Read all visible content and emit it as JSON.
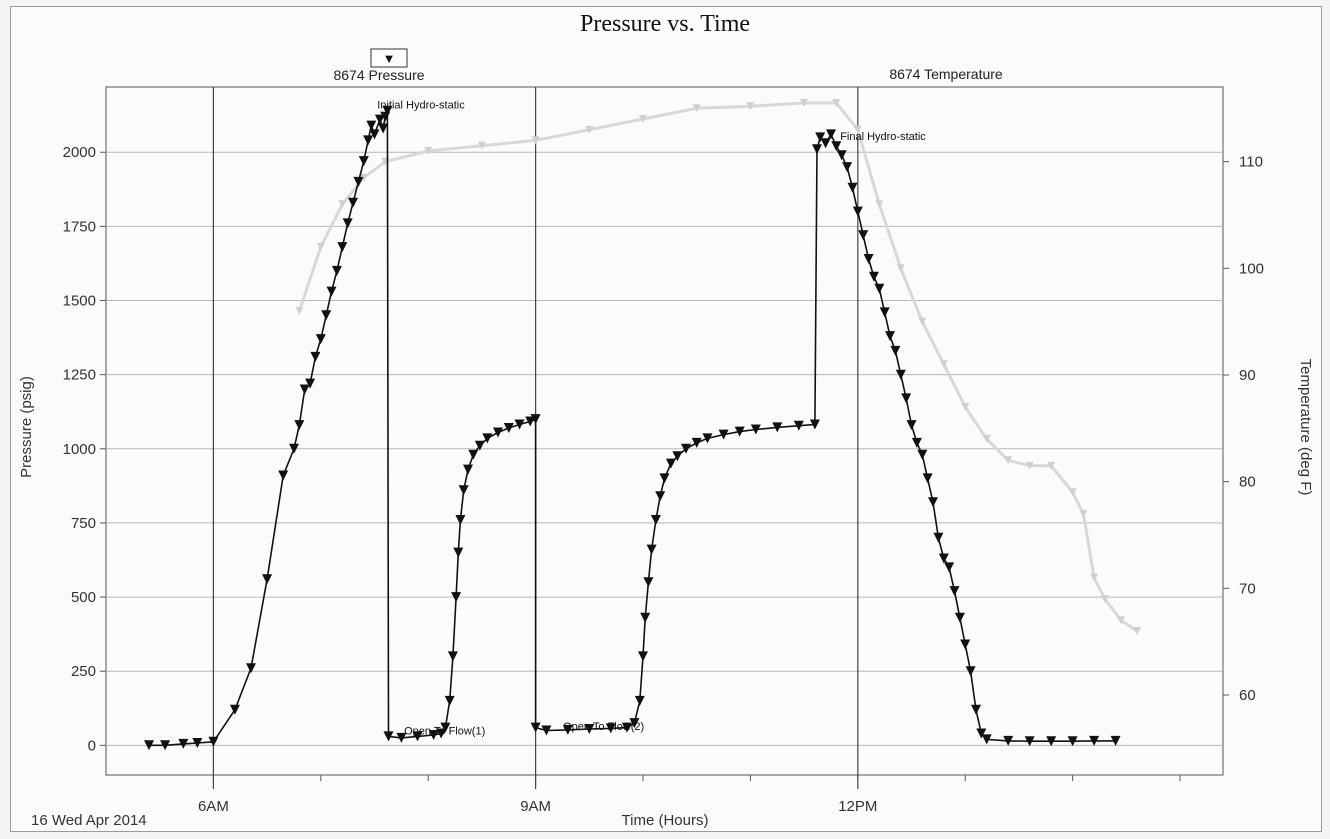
{
  "chart_data": {
    "type": "line",
    "title": "Pressure vs. Time",
    "xlabel": "Time (Hours)",
    "ylabel": "Pressure (psig)",
    "y2label": "Temperature (deg F)",
    "date_label": "16 Wed Apr 2014",
    "x_range_hours": [
      5.0,
      15.4
    ],
    "ylim": [
      -100,
      2220
    ],
    "y2lim": [
      52.5,
      117
    ],
    "x_ticks": [
      {
        "label": "6AM",
        "hour": 6
      },
      {
        "label": "9AM",
        "hour": 9
      },
      {
        "label": "12PM",
        "hour": 12
      }
    ],
    "y_ticks": [
      0,
      250,
      500,
      750,
      1000,
      1250,
      1500,
      1750,
      2000
    ],
    "y2_ticks": [
      60,
      70,
      80,
      90,
      100,
      110
    ],
    "grid": true,
    "legend": {
      "marker": "▼"
    },
    "series_labels": {
      "pressure": "8674 Pressure",
      "temperature": "8674 Temperature"
    },
    "annotations": [
      {
        "text": "Initial Hydro-static",
        "hour": 7.47,
        "value": 2140
      },
      {
        "text": "Final Hydro-static",
        "hour": 11.78,
        "value": 2035
      },
      {
        "text": "Open To Flow(1)",
        "hour": 7.72,
        "value": 30
      },
      {
        "text": "Open To Flow(2)",
        "hour": 9.2,
        "value": 45
      }
    ],
    "series": [
      {
        "name": "8674 Pressure",
        "axis": "left",
        "color": "#111111",
        "points": [
          [
            5.4,
            0
          ],
          [
            5.55,
            0
          ],
          [
            5.72,
            5
          ],
          [
            5.85,
            8
          ],
          [
            6.0,
            12
          ],
          [
            6.2,
            120
          ],
          [
            6.35,
            260
          ],
          [
            6.5,
            560
          ],
          [
            6.65,
            910
          ],
          [
            6.75,
            1000
          ],
          [
            6.8,
            1080
          ],
          [
            6.85,
            1200
          ],
          [
            6.9,
            1220
          ],
          [
            6.95,
            1310
          ],
          [
            7.0,
            1370
          ],
          [
            7.05,
            1450
          ],
          [
            7.1,
            1530
          ],
          [
            7.15,
            1600
          ],
          [
            7.2,
            1680
          ],
          [
            7.25,
            1760
          ],
          [
            7.3,
            1830
          ],
          [
            7.35,
            1900
          ],
          [
            7.4,
            1970
          ],
          [
            7.44,
            2040
          ],
          [
            7.47,
            2090
          ],
          [
            7.5,
            2060
          ],
          [
            7.55,
            2110
          ],
          [
            7.58,
            2080
          ],
          [
            7.6,
            2120
          ],
          [
            7.62,
            2140
          ],
          [
            7.63,
            30
          ],
          [
            7.75,
            25
          ],
          [
            7.9,
            30
          ],
          [
            8.05,
            35
          ],
          [
            8.12,
            40
          ],
          [
            8.16,
            60
          ],
          [
            8.2,
            150
          ],
          [
            8.23,
            300
          ],
          [
            8.26,
            500
          ],
          [
            8.28,
            650
          ],
          [
            8.3,
            760
          ],
          [
            8.33,
            860
          ],
          [
            8.37,
            930
          ],
          [
            8.42,
            980
          ],
          [
            8.48,
            1010
          ],
          [
            8.55,
            1035
          ],
          [
            8.65,
            1055
          ],
          [
            8.75,
            1070
          ],
          [
            8.85,
            1082
          ],
          [
            8.95,
            1092
          ],
          [
            9.0,
            1100
          ],
          [
            9.0,
            60
          ],
          [
            9.1,
            50
          ],
          [
            9.3,
            52
          ],
          [
            9.5,
            55
          ],
          [
            9.7,
            57
          ],
          [
            9.85,
            60
          ],
          [
            9.92,
            75
          ],
          [
            9.97,
            150
          ],
          [
            10.0,
            300
          ],
          [
            10.02,
            430
          ],
          [
            10.05,
            550
          ],
          [
            10.08,
            660
          ],
          [
            10.12,
            760
          ],
          [
            10.16,
            840
          ],
          [
            10.2,
            900
          ],
          [
            10.26,
            950
          ],
          [
            10.32,
            975
          ],
          [
            10.4,
            1000
          ],
          [
            10.5,
            1020
          ],
          [
            10.6,
            1035
          ],
          [
            10.75,
            1048
          ],
          [
            10.9,
            1058
          ],
          [
            11.05,
            1065
          ],
          [
            11.25,
            1072
          ],
          [
            11.45,
            1078
          ],
          [
            11.6,
            1082
          ],
          [
            11.62,
            2010
          ],
          [
            11.65,
            2050
          ],
          [
            11.7,
            2030
          ],
          [
            11.75,
            2060
          ],
          [
            11.8,
            2020
          ],
          [
            11.85,
            1990
          ],
          [
            11.9,
            1950
          ],
          [
            11.95,
            1880
          ],
          [
            12.0,
            1800
          ],
          [
            12.05,
            1720
          ],
          [
            12.1,
            1640
          ],
          [
            12.15,
            1580
          ],
          [
            12.2,
            1540
          ],
          [
            12.25,
            1460
          ],
          [
            12.3,
            1380
          ],
          [
            12.35,
            1330
          ],
          [
            12.4,
            1250
          ],
          [
            12.45,
            1170
          ],
          [
            12.5,
            1080
          ],
          [
            12.55,
            1020
          ],
          [
            12.6,
            980
          ],
          [
            12.65,
            900
          ],
          [
            12.7,
            820
          ],
          [
            12.75,
            700
          ],
          [
            12.8,
            630
          ],
          [
            12.85,
            600
          ],
          [
            12.9,
            520
          ],
          [
            12.95,
            430
          ],
          [
            13.0,
            340
          ],
          [
            13.05,
            250
          ],
          [
            13.1,
            120
          ],
          [
            13.15,
            40
          ],
          [
            13.2,
            20
          ],
          [
            13.4,
            15
          ],
          [
            13.6,
            14
          ],
          [
            13.8,
            14
          ],
          [
            14.0,
            14
          ],
          [
            14.2,
            15
          ],
          [
            14.4,
            15
          ]
        ]
      },
      {
        "name": "8674 Temperature",
        "axis": "right",
        "color": "#d8d8d8",
        "points": [
          [
            6.8,
            96
          ],
          [
            7.0,
            102
          ],
          [
            7.2,
            106
          ],
          [
            7.4,
            108.5
          ],
          [
            7.6,
            110
          ],
          [
            8.0,
            111
          ],
          [
            8.5,
            111.5
          ],
          [
            9.0,
            112
          ],
          [
            9.5,
            113
          ],
          [
            10.0,
            114
          ],
          [
            10.5,
            115
          ],
          [
            11.0,
            115.2
          ],
          [
            11.5,
            115.5
          ],
          [
            11.8,
            115.5
          ],
          [
            12.0,
            113
          ],
          [
            12.2,
            106
          ],
          [
            12.4,
            100
          ],
          [
            12.6,
            95
          ],
          [
            12.8,
            91
          ],
          [
            13.0,
            87
          ],
          [
            13.2,
            84
          ],
          [
            13.4,
            82
          ],
          [
            13.6,
            81.5
          ],
          [
            13.8,
            81.5
          ],
          [
            14.0,
            79
          ],
          [
            14.1,
            77
          ],
          [
            14.2,
            71
          ],
          [
            14.3,
            69
          ],
          [
            14.45,
            67
          ],
          [
            14.6,
            66
          ]
        ]
      }
    ]
  }
}
